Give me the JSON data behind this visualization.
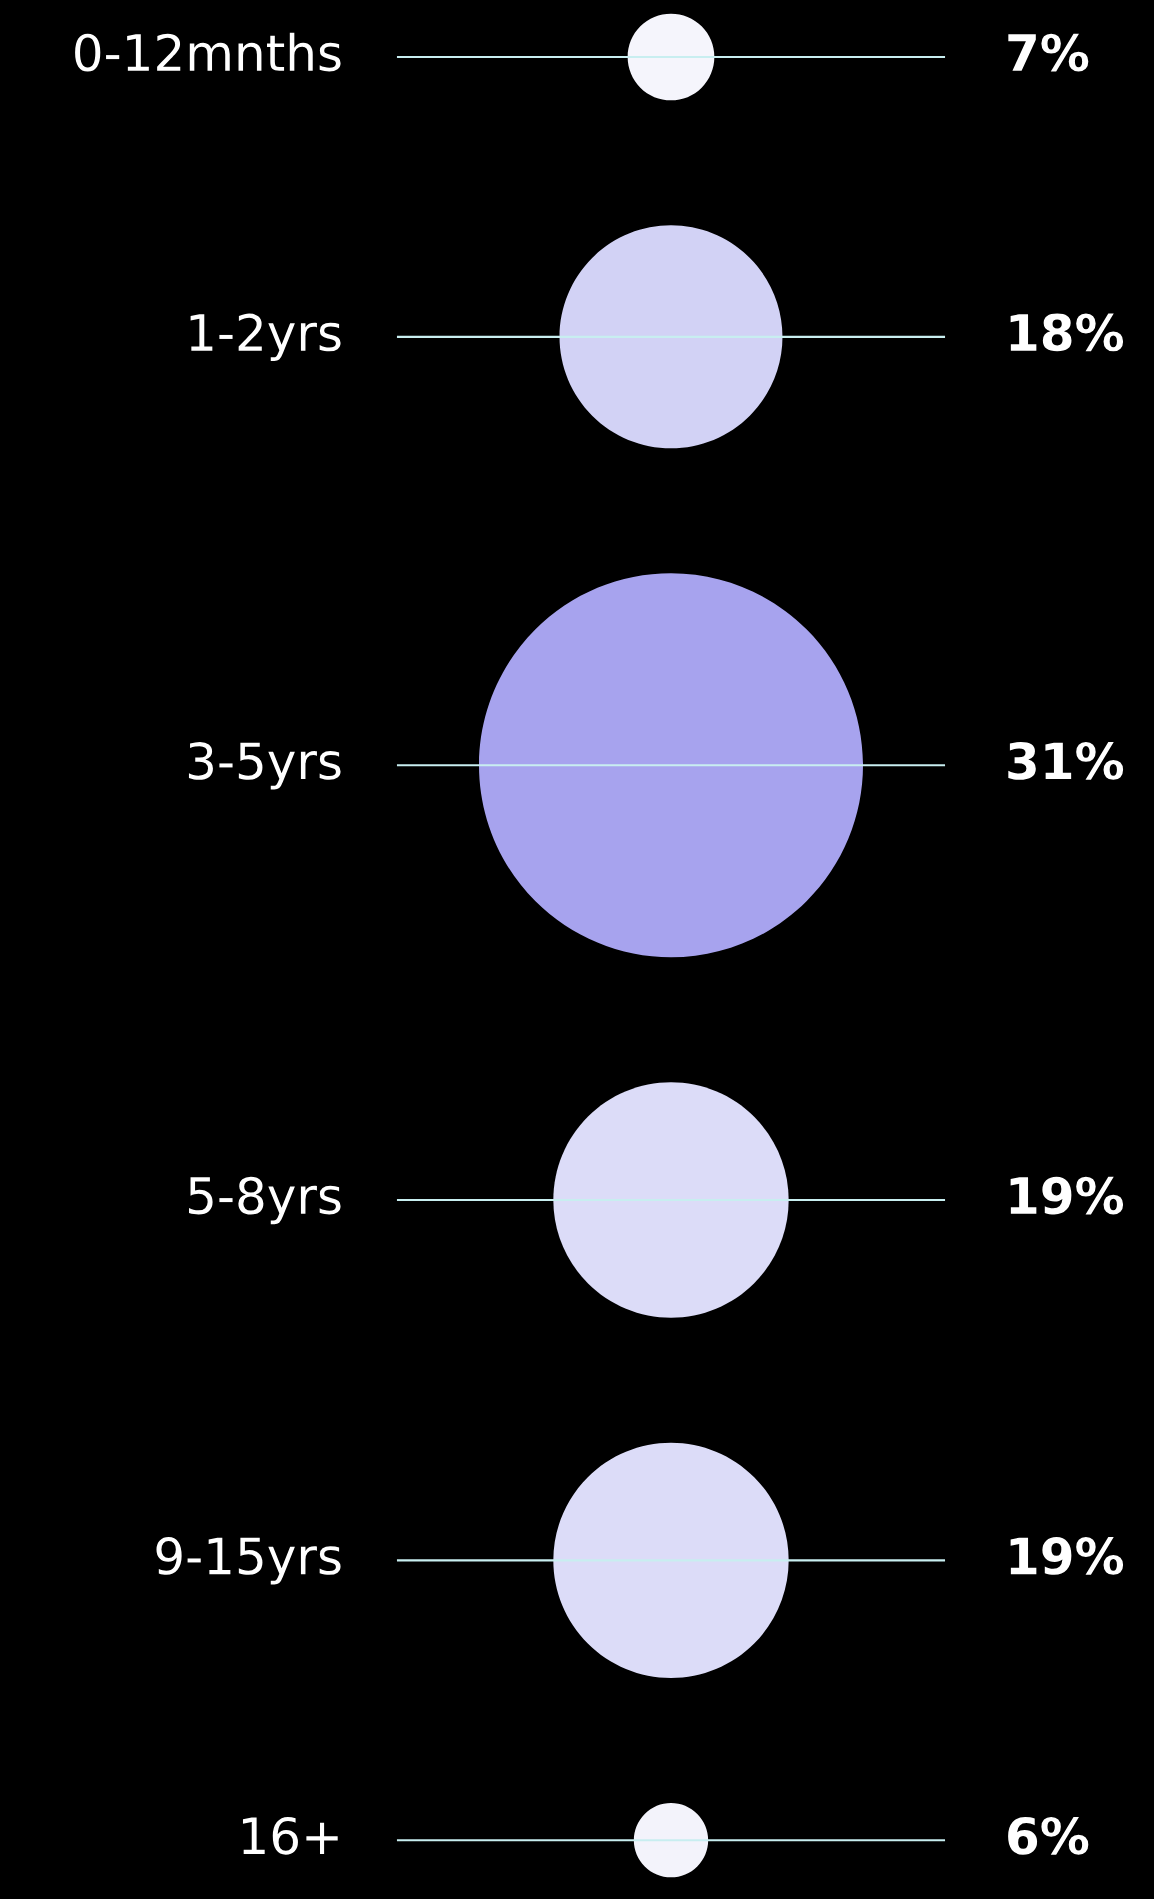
{
  "chart_data": {
    "type": "other",
    "categories": [
      "0-12mnths",
      "1-2yrs",
      "3-5yrs",
      "5-8yrs",
      "9-15yrs",
      "16+"
    ],
    "values": [
      7,
      18,
      31,
      19,
      19,
      6
    ],
    "value_labels": [
      "7%",
      "18%",
      "31%",
      "19%",
      "19%",
      "6%"
    ],
    "colors": [
      "#f5f5fc",
      "#d2d2f5",
      "#a7a3ee",
      "#dcdcf8",
      "#dcdcf8",
      "#f3f3fb"
    ]
  }
}
